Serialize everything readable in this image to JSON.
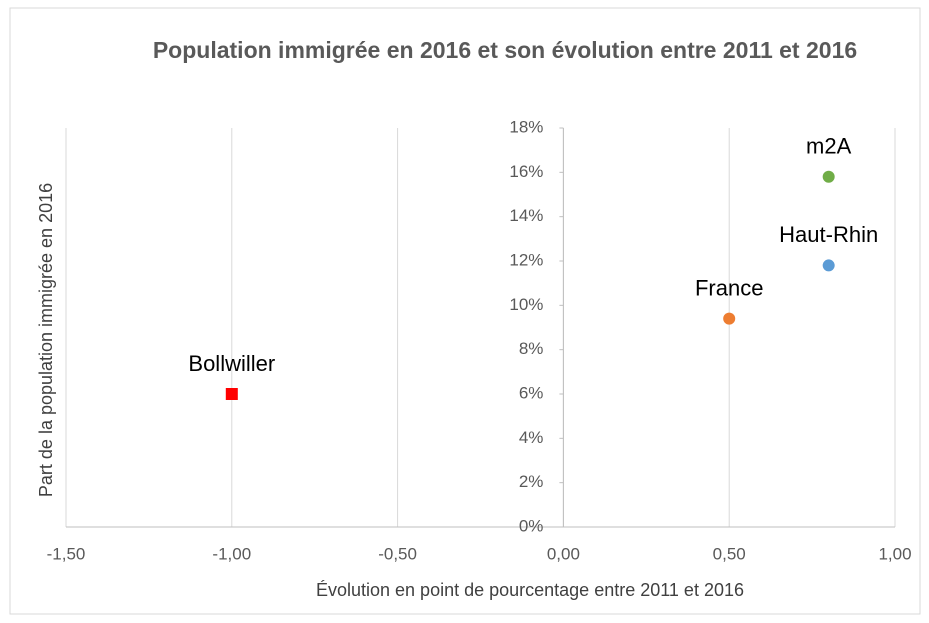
{
  "chart_data": {
    "type": "scatter",
    "title": "Population immigrée en 2016 et son évolution entre 2011 et 2016",
    "x_label": "Évolution en point de pourcentage entre 2011 et 2016",
    "y_label": "Part de la population immigrée en 2016",
    "xlim": [
      -1.5,
      1.0
    ],
    "xticks": [
      {
        "value": -1.5,
        "label": "-1,50"
      },
      {
        "value": -1.0,
        "label": "-1,00"
      },
      {
        "value": -0.5,
        "label": "-0,50"
      },
      {
        "value": 0,
        "label": "0,00"
      },
      {
        "value": 0.5,
        "label": "0,50"
      },
      {
        "value": 1.0,
        "label": "1,00"
      }
    ],
    "ylim": [
      0,
      18
    ],
    "yticks": [
      {
        "value": 0,
        "label": "0%"
      },
      {
        "value": 2,
        "label": "2%"
      },
      {
        "value": 4,
        "label": "4%"
      },
      {
        "value": 6,
        "label": "6%"
      },
      {
        "value": 8,
        "label": "8%"
      },
      {
        "value": 10,
        "label": "10%"
      },
      {
        "value": 12,
        "label": "12%"
      },
      {
        "value": 14,
        "label": "14%"
      },
      {
        "value": 16,
        "label": "16%"
      },
      {
        "value": 18,
        "label": "18%"
      }
    ],
    "grid": true,
    "series": [
      {
        "name": "Bollwiller",
        "color": "#ff0000",
        "marker": "square",
        "x": [
          -1.0
        ],
        "values": [
          6.0
        ]
      },
      {
        "name": "France",
        "color": "#ed7d31",
        "marker": "circle",
        "x": [
          0.5
        ],
        "values": [
          9.4
        ]
      },
      {
        "name": "Haut-Rhin",
        "color": "#5b9bd5",
        "marker": "circle",
        "x": [
          0.8
        ],
        "values": [
          11.8
        ]
      },
      {
        "name": "m2A",
        "color": "#70ad47",
        "marker": "circle",
        "x": [
          0.8
        ],
        "values": [
          15.8
        ]
      }
    ]
  }
}
